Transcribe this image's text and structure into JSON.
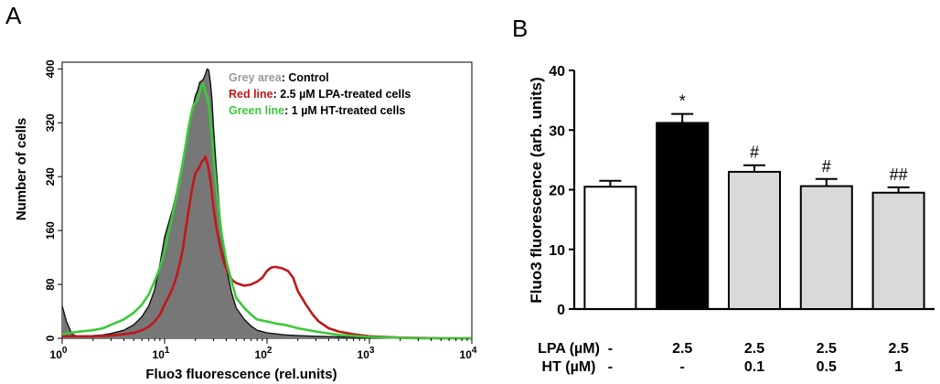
{
  "chart_data": [
    {
      "panel": "A",
      "type": "line",
      "xlabel": "Fluo3 fluorescence (rel.units)",
      "ylabel": "Number of cells",
      "xscale": "log",
      "xlim": [
        1,
        10000
      ],
      "ylim": [
        0,
        410
      ],
      "x_ticks": [
        {
          "value": 1,
          "base": "10",
          "exp": "0"
        },
        {
          "value": 10,
          "base": "10",
          "exp": "1"
        },
        {
          "value": 100,
          "base": "10",
          "exp": "2"
        },
        {
          "value": 1000,
          "base": "10",
          "exp": "3"
        },
        {
          "value": 10000,
          "base": "10",
          "exp": "4"
        }
      ],
      "y_ticks": [
        "0",
        "80",
        "160",
        "240",
        "320",
        "400"
      ],
      "legend": [
        {
          "key": "Grey area",
          "text": ": Control",
          "color": "#9a9a9a"
        },
        {
          "key": "Red line",
          "text": ": 2.5 µM LPA-treated cells",
          "color": "#c0171b"
        },
        {
          "key": "Green line",
          "text": ": 1 µM HT-treated cells",
          "color": "#3dc83a"
        }
      ],
      "series": [
        {
          "name": "Grey area",
          "color": "#777777",
          "style": "area",
          "x": [
            1,
            1.1,
            1.25,
            1.4,
            1.6,
            2,
            2.5,
            3,
            4,
            5,
            6,
            7,
            8,
            9,
            10,
            11,
            12,
            13,
            14,
            15,
            16,
            17,
            18,
            19,
            20,
            21,
            22,
            23,
            24,
            25,
            26,
            27,
            28,
            29,
            30,
            32,
            34,
            36,
            40,
            45,
            50,
            60,
            70,
            80,
            100,
            150,
            200,
            300,
            500,
            1000,
            3000,
            10000
          ],
          "y": [
            48,
            25,
            6,
            3,
            2,
            4,
            5,
            7,
            12,
            20,
            32,
            48,
            72,
            110,
            150,
            172,
            192,
            215,
            240,
            262,
            285,
            310,
            330,
            345,
            360,
            368,
            380,
            382,
            385,
            392,
            400,
            398,
            380,
            355,
            315,
            250,
            200,
            150,
            105,
            68,
            45,
            28,
            18,
            12,
            8,
            5,
            4,
            3,
            2,
            1,
            0,
            0
          ]
        },
        {
          "name": "Control outline",
          "color": "#111111",
          "style": "line",
          "x": [
            1,
            1.1,
            1.25,
            1.4,
            1.6,
            2,
            2.5,
            3,
            4,
            5,
            6,
            7,
            8,
            9,
            10,
            11,
            12,
            13,
            14,
            15,
            16,
            17,
            18,
            19,
            20,
            21,
            22,
            23,
            24,
            25,
            26,
            27,
            28,
            29,
            30,
            32,
            34,
            36,
            40,
            45,
            50,
            60,
            70,
            80,
            100,
            150,
            200,
            300,
            500,
            1000,
            3000,
            10000
          ],
          "y": [
            48,
            25,
            6,
            3,
            2,
            4,
            5,
            7,
            12,
            20,
            32,
            48,
            72,
            110,
            150,
            172,
            192,
            215,
            240,
            262,
            285,
            310,
            330,
            345,
            360,
            368,
            380,
            382,
            385,
            392,
            400,
            398,
            380,
            355,
            315,
            250,
            200,
            150,
            105,
            68,
            45,
            28,
            18,
            12,
            8,
            5,
            4,
            3,
            2,
            1,
            0,
            0
          ]
        },
        {
          "name": "Red line",
          "color": "#c0171b",
          "style": "line",
          "x": [
            1,
            2,
            3,
            4,
            5,
            6,
            7,
            8,
            9,
            10,
            11,
            12,
            13,
            14,
            15,
            16,
            17,
            18,
            19,
            20,
            21,
            22,
            23,
            24,
            25,
            26,
            27,
            28,
            29,
            30,
            32,
            35,
            38,
            42,
            46,
            50,
            55,
            60,
            70,
            80,
            90,
            100,
            110,
            120,
            140,
            160,
            180,
            200,
            240,
            280,
            320,
            400,
            500,
            700,
            1000,
            2000,
            5000,
            10000
          ],
          "y": [
            3,
            3,
            4,
            6,
            8,
            12,
            17,
            25,
            35,
            50,
            62,
            75,
            90,
            110,
            130,
            160,
            185,
            210,
            230,
            245,
            250,
            255,
            262,
            265,
            270,
            262,
            250,
            235,
            215,
            195,
            165,
            135,
            112,
            96,
            86,
            82,
            80,
            78,
            80,
            84,
            90,
            100,
            105,
            106,
            104,
            100,
            90,
            70,
            50,
            35,
            25,
            15,
            10,
            6,
            3,
            1,
            0,
            0
          ]
        },
        {
          "name": "Green line",
          "color": "#3dc83a",
          "style": "line",
          "x": [
            1,
            1.2,
            1.5,
            2,
            2.5,
            3,
            4,
            5,
            6,
            7,
            8,
            9,
            10,
            11,
            12,
            13,
            14,
            15,
            16,
            17,
            18,
            19,
            20,
            21,
            22,
            23,
            24,
            25,
            26,
            27,
            28,
            29,
            30,
            32,
            34,
            36,
            40,
            45,
            50,
            60,
            70,
            80,
            100,
            120,
            150,
            200,
            300,
            500,
            1000,
            3000,
            10000
          ],
          "y": [
            6,
            8,
            10,
            12,
            15,
            20,
            28,
            38,
            50,
            65,
            85,
            105,
            130,
            160,
            185,
            210,
            235,
            260,
            285,
            310,
            330,
            345,
            350,
            355,
            365,
            375,
            378,
            365,
            360,
            345,
            325,
            300,
            270,
            225,
            190,
            155,
            115,
            85,
            60,
            45,
            35,
            28,
            25,
            22,
            20,
            15,
            10,
            5,
            2,
            0,
            0
          ]
        }
      ]
    },
    {
      "panel": "B",
      "type": "bar",
      "ylabel": "Fluo3 fluorescence (arb. units)",
      "ylim": [
        0,
        40
      ],
      "y_ticks": [
        "0",
        "10",
        "20",
        "30",
        "40"
      ],
      "values": [
        20.5,
        31.2,
        23.0,
        20.6,
        19.5
      ],
      "errors": [
        1.0,
        1.5,
        1.1,
        1.2,
        0.9
      ],
      "fills": [
        "#ffffff",
        "#000000",
        "#d9d9d9",
        "#d9d9d9",
        "#d9d9d9"
      ],
      "significance": [
        "",
        "*",
        "#",
        "#",
        "##"
      ],
      "condition_rows": [
        {
          "label": "LPA (µM)",
          "values": [
            "-",
            "2.5",
            "2.5",
            "2.5",
            "2.5"
          ]
        },
        {
          "label": "HT (µM)",
          "values": [
            "-",
            "-",
            "0.1",
            "0.5",
            "1"
          ]
        }
      ]
    }
  ]
}
